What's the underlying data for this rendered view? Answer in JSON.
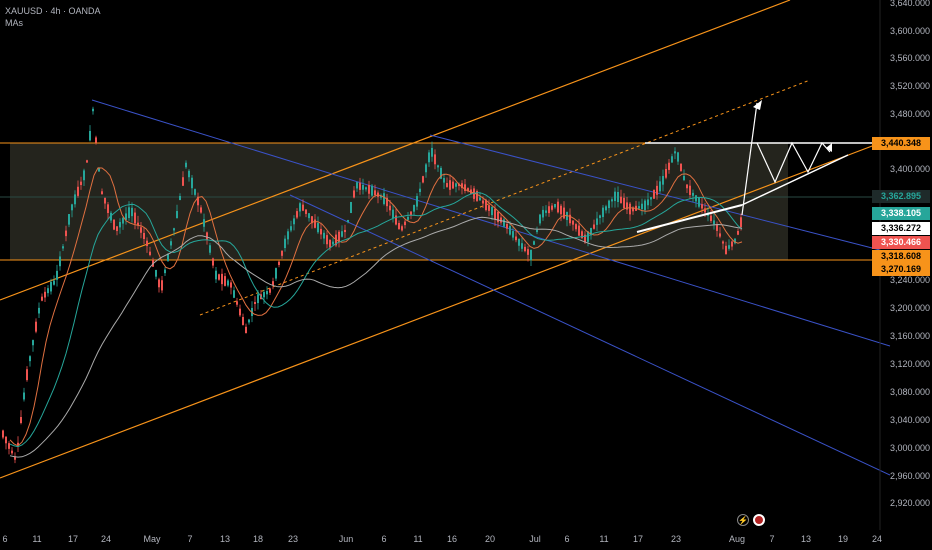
{
  "header": {
    "symbol": "XAUUSD · 4h · OANDA",
    "indicator": "MAs"
  },
  "price_axis": {
    "min": 2900,
    "max": 3650,
    "labels": [
      "3,640.000",
      "3,600.000",
      "3,560.000",
      "3,520.000",
      "3,480.000",
      "3,400.000",
      "3,240.000",
      "3,200.000",
      "3,160.000",
      "3,120.000",
      "3,080.000",
      "3,040.000",
      "3,000.000",
      "2,960.000",
      "2,920.000"
    ]
  },
  "time_axis": {
    "labels": [
      "6",
      "11",
      "17",
      "24",
      "May",
      "7",
      "13",
      "18",
      "23",
      "Jun",
      "6",
      "11",
      "16",
      "20",
      "24",
      "Jul",
      "6",
      "11",
      "17",
      "23",
      "Aug",
      "7",
      "13",
      "19",
      "24"
    ]
  },
  "price_tags": [
    {
      "label": "3,440.348",
      "bg": "#f7931a",
      "fg": "#000000"
    },
    {
      "label": "3,362.895",
      "bg": "#1e2a2a",
      "fg": "#26a69a"
    },
    {
      "label": "3,338.105",
      "bg": "#26a69a",
      "fg": "#ffffff"
    },
    {
      "label": "3,336.272",
      "bg": "#ffffff",
      "fg": "#000000"
    },
    {
      "label": "3,330.466",
      "bg": "#ef5350",
      "fg": "#ffffff"
    },
    {
      "label": "3,318.608",
      "bg": "#f7931a",
      "fg": "#000000"
    },
    {
      "label": "3,270.169",
      "bg": "#f7931a",
      "fg": "#000000"
    }
  ],
  "colors": {
    "up": "#26a69a",
    "down": "#ef5350",
    "orange": "#f7931a",
    "blue": "#3a52c8"
  },
  "icons": [
    "replay-icon",
    "flag-icon"
  ]
}
